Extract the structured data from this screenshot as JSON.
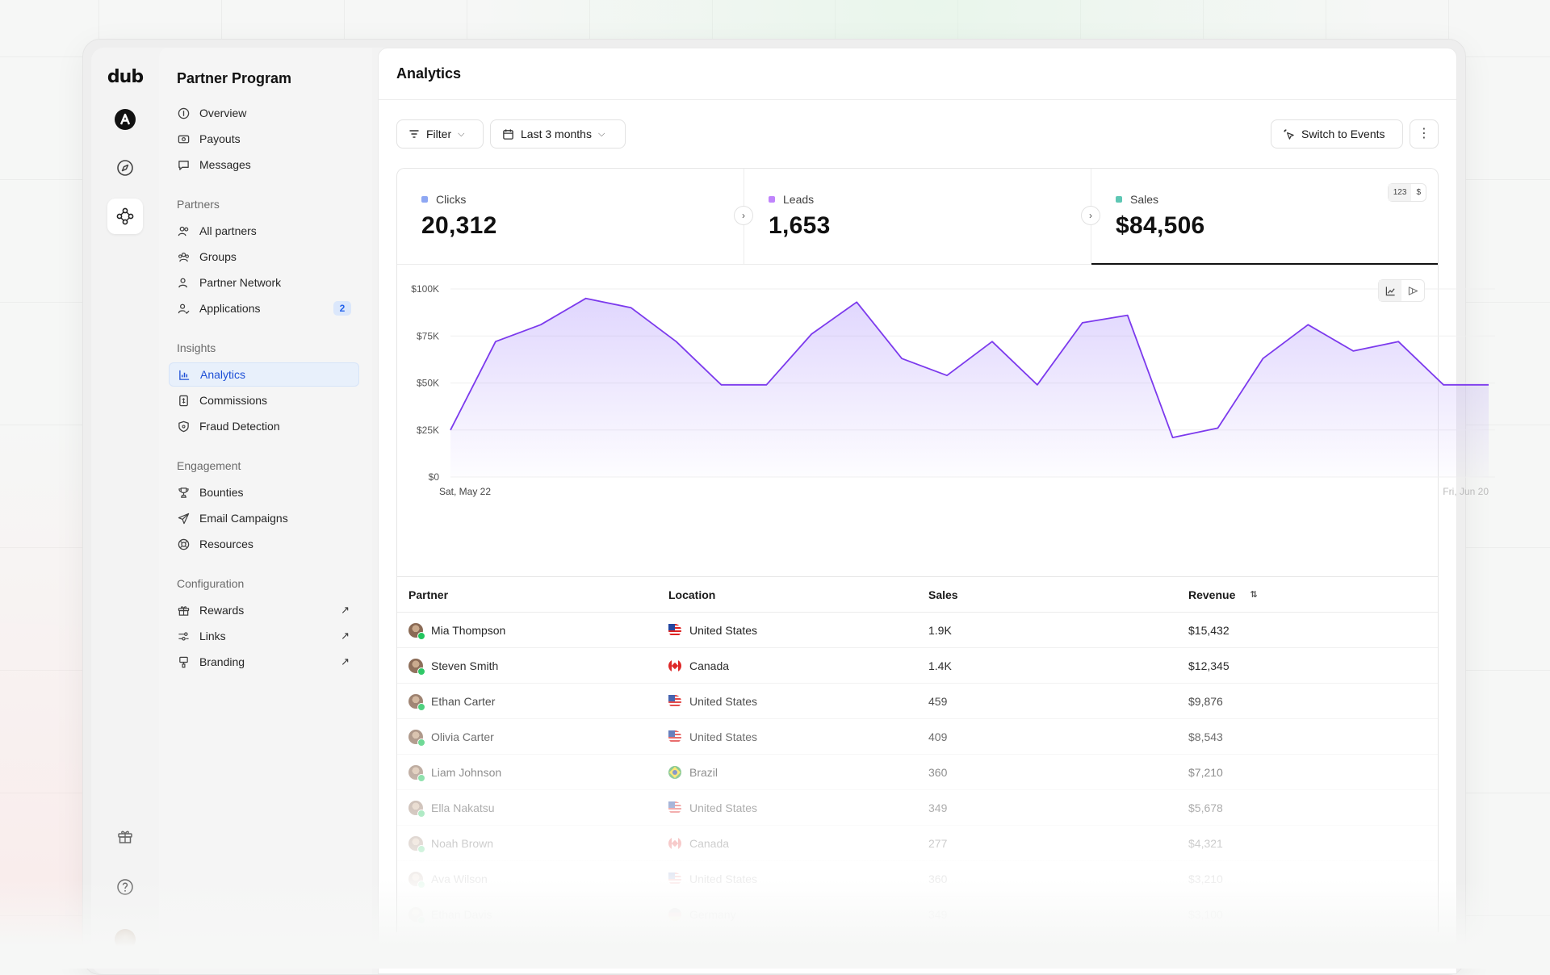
{
  "app": {
    "logo": "dub"
  },
  "sidebar": {
    "title": "Partner Program",
    "top_items": [
      {
        "label": "Overview",
        "icon": "compass-icon"
      },
      {
        "label": "Payouts",
        "icon": "money-icon"
      },
      {
        "label": "Messages",
        "icon": "message-icon"
      }
    ],
    "sections": [
      {
        "title": "Partners",
        "items": [
          {
            "label": "All partners",
            "icon": "users-icon"
          },
          {
            "label": "Groups",
            "icon": "groups-icon"
          },
          {
            "label": "Partner Network",
            "icon": "user-network-icon"
          },
          {
            "label": "Applications",
            "icon": "user-check-icon",
            "badge": "2"
          }
        ]
      },
      {
        "title": "Insights",
        "items": [
          {
            "label": "Analytics",
            "icon": "bar-chart-icon",
            "active": true
          },
          {
            "label": "Commissions",
            "icon": "receipt-icon"
          },
          {
            "label": "Fraud Detection",
            "icon": "shield-icon"
          }
        ]
      },
      {
        "title": "Engagement",
        "items": [
          {
            "label": "Bounties",
            "icon": "trophy-icon"
          },
          {
            "label": "Email Campaigns",
            "icon": "send-icon"
          },
          {
            "label": "Resources",
            "icon": "lifebuoy-icon"
          }
        ]
      },
      {
        "title": "Configuration",
        "items": [
          {
            "label": "Rewards",
            "icon": "gift-icon",
            "external": true
          },
          {
            "label": "Links",
            "icon": "link-icon",
            "external": true
          },
          {
            "label": "Branding",
            "icon": "paint-icon",
            "external": true
          }
        ]
      }
    ]
  },
  "header": {
    "title": "Analytics"
  },
  "toolbar": {
    "filter_label": "Filter",
    "range_label": "Last 3 months",
    "switch_label": "Switch to Events"
  },
  "stats": [
    {
      "label": "Clicks",
      "value": "20,312",
      "color": "#8ea7f3"
    },
    {
      "label": "Leads",
      "value": "1,653",
      "color": "#c084fc"
    },
    {
      "label": "Sales",
      "value": "$84,506",
      "color": "#5ec7b4"
    }
  ],
  "toggle": {
    "count_label": "123",
    "currency_label": "$"
  },
  "chart_data": {
    "type": "area",
    "x_start_label": "Sat, May 22",
    "x_end_label": "Fri, Jun 20",
    "y_ticks": [
      "$100K",
      "$75K",
      "$50K",
      "$25K",
      "$0"
    ],
    "ylim": [
      0,
      100000
    ],
    "series": [
      {
        "values": [
          25000,
          72000,
          81000,
          95000,
          90000,
          72000,
          49000,
          49000,
          76000,
          93000,
          63000,
          54000,
          72000,
          49000,
          82000,
          86000,
          21000,
          26000,
          63000,
          81000,
          67000,
          72000,
          49000,
          49000
        ]
      }
    ],
    "color": "#7c3aed"
  },
  "table": {
    "columns": [
      "Partner",
      "Location",
      "Sales",
      "Revenue"
    ],
    "rows": [
      {
        "partner": "Mia Thompson",
        "location": "United States",
        "flag": "us",
        "sales": "1.9K",
        "revenue": "$15,432"
      },
      {
        "partner": "Steven Smith",
        "location": "Canada",
        "flag": "ca",
        "sales": "1.4K",
        "revenue": "$12,345"
      },
      {
        "partner": "Ethan Carter",
        "location": "United States",
        "flag": "us",
        "sales": "459",
        "revenue": "$9,876"
      },
      {
        "partner": "Olivia Carter",
        "location": "United States",
        "flag": "us",
        "sales": "409",
        "revenue": "$8,543"
      },
      {
        "partner": "Liam Johnson",
        "location": "Brazil",
        "flag": "br",
        "sales": "360",
        "revenue": "$7,210"
      },
      {
        "partner": "Ella Nakatsu",
        "location": "United States",
        "flag": "us",
        "sales": "349",
        "revenue": "$5,678"
      },
      {
        "partner": "Noah Brown",
        "location": "Canada",
        "flag": "ca",
        "sales": "277",
        "revenue": "$4,321"
      },
      {
        "partner": "Ava Wilson",
        "location": "United States",
        "flag": "us",
        "sales": "360",
        "revenue": "$3,210"
      },
      {
        "partner": "Ethan Davis",
        "location": "Germany",
        "flag": "de",
        "sales": "349",
        "revenue": "$3,100"
      }
    ]
  }
}
